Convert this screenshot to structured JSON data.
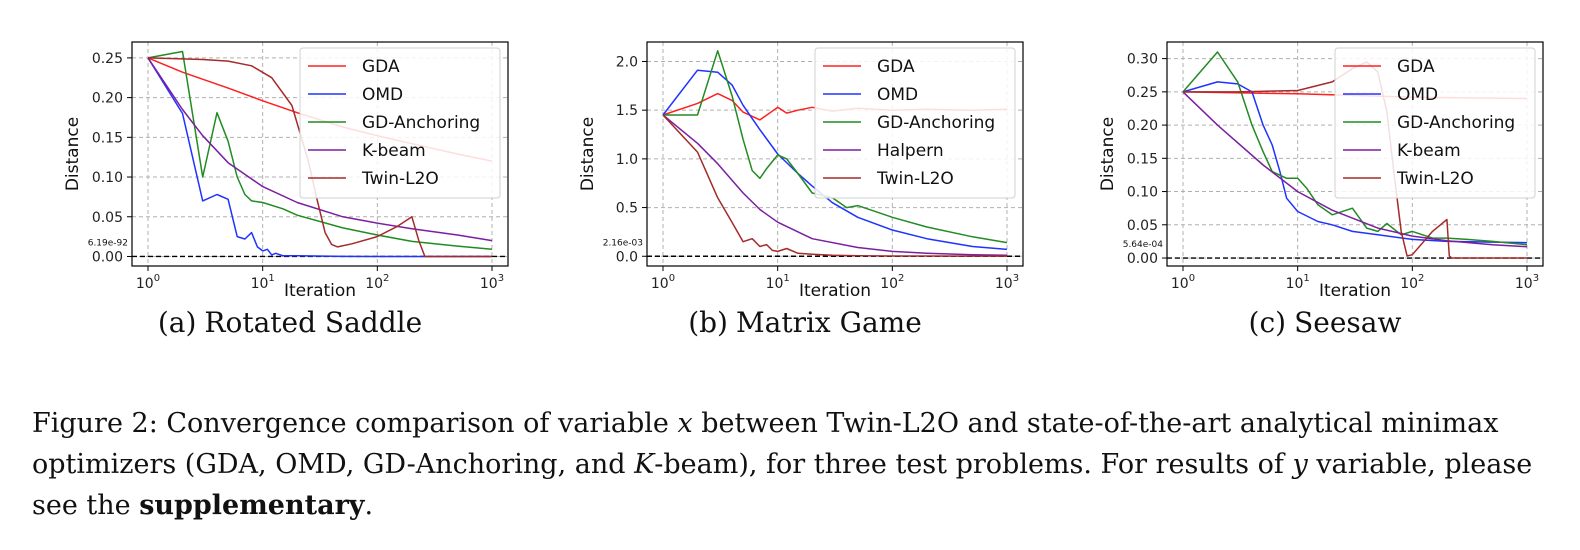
{
  "figure": {
    "label": "Figure 2:",
    "text1": "Convergence comparison of variable ",
    "var_x": "x",
    "text2": " between Twin-L2O and state-of-the-art analytical minimax optimizers (GDA, OMD, GD-Anchoring, and ",
    "var_k": "K",
    "text3": "-beam), for three test problems. For results of ",
    "var_y": "y",
    "text4": " variable, please see the ",
    "bold_word": "supplementary",
    "text5": "."
  },
  "chart_data": [
    {
      "type": "line",
      "caption_tag": "(a)",
      "caption": "Rotated Saddle",
      "xlabel": "Iteration",
      "ylabel": "Distance",
      "xscale": "log",
      "xlim": [
        1,
        1000
      ],
      "ylim": [
        -0.012,
        0.27
      ],
      "xticks": [
        1,
        10,
        100,
        1000
      ],
      "xtick_labels": [
        "10",
        "10",
        "10",
        "10"
      ],
      "xtick_exps": [
        "0",
        "1",
        "2",
        "3"
      ],
      "yticks": [
        0,
        0.05,
        0.1,
        0.15,
        0.2,
        0.25
      ],
      "ytick_labels": [
        "0.00",
        "0.05",
        "0.10",
        "0.15",
        "0.20",
        "0.25"
      ],
      "grid": true,
      "legend_position": "top-right",
      "annotation": "6.19e-92",
      "series": [
        {
          "name": "GDA",
          "color": "#ff2020",
          "x": [
            1,
            2,
            5,
            10,
            20,
            50,
            100,
            200,
            500,
            1000
          ],
          "y": [
            0.25,
            0.232,
            0.212,
            0.196,
            0.181,
            0.163,
            0.152,
            0.142,
            0.129,
            0.12
          ]
        },
        {
          "name": "OMD",
          "color": "#1f33ff",
          "x": [
            1,
            2,
            3,
            4,
            5,
            6,
            7,
            8,
            9,
            10,
            11,
            12,
            13,
            15,
            20,
            50,
            100,
            1000
          ],
          "y": [
            0.25,
            0.18,
            0.07,
            0.078,
            0.072,
            0.025,
            0.022,
            0.03,
            0.012,
            0.007,
            0.009,
            0.002,
            0.004,
            0.001,
            0.0008,
            0.0001,
            0.0,
            0.0
          ]
        },
        {
          "name": "GD-Anchoring",
          "color": "#228b22",
          "x": [
            1,
            2,
            3,
            4,
            5,
            6,
            7,
            8,
            10,
            15,
            20,
            50,
            100,
            200,
            500,
            1000
          ],
          "y": [
            0.25,
            0.258,
            0.1,
            0.181,
            0.145,
            0.1,
            0.078,
            0.07,
            0.068,
            0.06,
            0.052,
            0.036,
            0.027,
            0.019,
            0.013,
            0.009
          ]
        },
        {
          "name": "K-beam",
          "color": "#7b1fa2",
          "x": [
            1,
            2,
            3,
            5,
            10,
            20,
            50,
            100,
            200,
            500,
            1000
          ],
          "y": [
            0.25,
            0.185,
            0.152,
            0.118,
            0.088,
            0.068,
            0.05,
            0.042,
            0.035,
            0.027,
            0.02
          ]
        },
        {
          "name": "Twin-L2O",
          "color": "#a52a2a",
          "x": [
            1,
            3,
            5,
            8,
            12,
            18,
            25,
            30,
            35,
            40,
            45,
            60,
            100,
            150,
            200,
            230,
            260,
            300,
            1000
          ],
          "y": [
            0.25,
            0.248,
            0.246,
            0.24,
            0.225,
            0.19,
            0.12,
            0.07,
            0.03,
            0.015,
            0.012,
            0.016,
            0.025,
            0.038,
            0.05,
            0.02,
            0.0,
            0.0,
            0.0
          ]
        }
      ]
    },
    {
      "type": "line",
      "caption_tag": "(b)",
      "caption": "Matrix Game",
      "xlabel": "Iteration",
      "ylabel": "Distance",
      "xscale": "log",
      "xlim": [
        1,
        1000
      ],
      "ylim": [
        -0.1,
        2.2
      ],
      "xticks": [
        1,
        10,
        100,
        1000
      ],
      "xtick_labels": [
        "10",
        "10",
        "10",
        "10"
      ],
      "xtick_exps": [
        "0",
        "1",
        "2",
        "3"
      ],
      "yticks": [
        0,
        0.5,
        1.0,
        1.5,
        2.0
      ],
      "ytick_labels": [
        "0.0",
        "0.5",
        "1.0",
        "1.5",
        "2.0"
      ],
      "grid": true,
      "legend_position": "top-right",
      "annotation": "2.16e-03",
      "series": [
        {
          "name": "GDA",
          "color": "#ff2020",
          "x": [
            1,
            2,
            3,
            4,
            5,
            7,
            10,
            12,
            15,
            20,
            30,
            50,
            100,
            200,
            500,
            1000
          ],
          "y": [
            1.45,
            1.57,
            1.67,
            1.6,
            1.48,
            1.4,
            1.53,
            1.47,
            1.5,
            1.53,
            1.49,
            1.52,
            1.5,
            1.51,
            1.5,
            1.51
          ]
        },
        {
          "name": "OMD",
          "color": "#1f33ff",
          "x": [
            1,
            2,
            3,
            4,
            5,
            7,
            10,
            15,
            20,
            30,
            50,
            100,
            200,
            500,
            1000
          ],
          "y": [
            1.45,
            1.91,
            1.89,
            1.76,
            1.55,
            1.3,
            1.05,
            0.85,
            0.72,
            0.55,
            0.4,
            0.27,
            0.18,
            0.1,
            0.07
          ]
        },
        {
          "name": "GD-Anchoring",
          "color": "#228b22",
          "x": [
            1,
            2,
            3,
            4,
            5,
            6,
            7,
            8,
            10,
            12,
            15,
            20,
            30,
            40,
            50,
            100,
            200,
            500,
            1000
          ],
          "y": [
            1.45,
            1.45,
            2.11,
            1.65,
            1.2,
            0.88,
            0.8,
            0.9,
            1.04,
            1.0,
            0.85,
            0.65,
            0.6,
            0.5,
            0.52,
            0.4,
            0.3,
            0.2,
            0.14
          ]
        },
        {
          "name": "Halpern",
          "color": "#7b1fa2",
          "x": [
            1,
            2,
            3,
            5,
            7,
            10,
            20,
            50,
            100,
            200,
            500,
            1000
          ],
          "y": [
            1.45,
            1.16,
            0.95,
            0.65,
            0.48,
            0.35,
            0.18,
            0.09,
            0.05,
            0.03,
            0.015,
            0.01
          ]
        },
        {
          "name": "Twin-L2O",
          "color": "#a52a2a",
          "x": [
            1,
            2,
            3,
            4,
            5,
            6,
            7,
            8,
            9,
            10,
            12,
            15,
            20,
            30,
            50,
            100,
            1000
          ],
          "y": [
            1.45,
            1.07,
            0.6,
            0.35,
            0.15,
            0.18,
            0.1,
            0.12,
            0.06,
            0.05,
            0.08,
            0.03,
            0.02,
            0.01,
            0.005,
            0.003,
            0.002
          ]
        }
      ]
    },
    {
      "type": "line",
      "caption_tag": "(c)",
      "caption": "Seesaw",
      "xlabel": "Iteration",
      "ylabel": "Distance",
      "xscale": "log",
      "xlim": [
        1,
        1000
      ],
      "ylim": [
        -0.012,
        0.325
      ],
      "xticks": [
        1,
        10,
        100,
        1000
      ],
      "xtick_labels": [
        "10",
        "10",
        "10",
        "10"
      ],
      "xtick_exps": [
        "0",
        "1",
        "2",
        "3"
      ],
      "yticks": [
        0,
        0.05,
        0.1,
        0.15,
        0.2,
        0.25,
        0.3
      ],
      "ytick_labels": [
        "0.00",
        "0.05",
        "0.10",
        "0.15",
        "0.20",
        "0.25",
        "0.30"
      ],
      "grid": true,
      "legend_position": "top-right",
      "annotation": "5.64e-04",
      "series": [
        {
          "name": "GDA",
          "color": "#ff2020",
          "x": [
            1,
            10,
            100,
            1000
          ],
          "y": [
            0.25,
            0.247,
            0.242,
            0.24
          ]
        },
        {
          "name": "OMD",
          "color": "#1f33ff",
          "x": [
            1,
            2,
            3,
            4,
            5,
            6,
            7,
            8,
            10,
            15,
            20,
            30,
            50,
            100,
            200,
            500,
            1000
          ],
          "y": [
            0.25,
            0.265,
            0.262,
            0.25,
            0.2,
            0.17,
            0.13,
            0.09,
            0.07,
            0.055,
            0.05,
            0.04,
            0.035,
            0.028,
            0.025,
            0.024,
            0.023
          ]
        },
        {
          "name": "GD-Anchoring",
          "color": "#228b22",
          "x": [
            1,
            2,
            3,
            4,
            5,
            6,
            8,
            10,
            12,
            15,
            20,
            30,
            40,
            50,
            60,
            80,
            100,
            150,
            200,
            300,
            500,
            1000
          ],
          "y": [
            0.25,
            0.31,
            0.265,
            0.2,
            0.16,
            0.13,
            0.12,
            0.12,
            0.105,
            0.08,
            0.065,
            0.075,
            0.045,
            0.04,
            0.052,
            0.035,
            0.04,
            0.03,
            0.03,
            0.028,
            0.025,
            0.02
          ]
        },
        {
          "name": "K-beam",
          "color": "#7b1fa2",
          "x": [
            1,
            2,
            5,
            10,
            20,
            50,
            100,
            200,
            500,
            1000
          ],
          "y": [
            0.25,
            0.2,
            0.14,
            0.1,
            0.072,
            0.045,
            0.033,
            0.026,
            0.02,
            0.017
          ]
        },
        {
          "name": "Twin-L2O",
          "color": "#a52a2a",
          "x": [
            1,
            3,
            10,
            20,
            30,
            40,
            50,
            60,
            70,
            80,
            90,
            100,
            150,
            200,
            210,
            220,
            1000
          ],
          "y": [
            0.25,
            0.25,
            0.252,
            0.265,
            0.285,
            0.295,
            0.28,
            0.22,
            0.12,
            0.04,
            0.003,
            0.005,
            0.04,
            0.058,
            0.003,
            0.0,
            0.0
          ]
        }
      ]
    }
  ]
}
